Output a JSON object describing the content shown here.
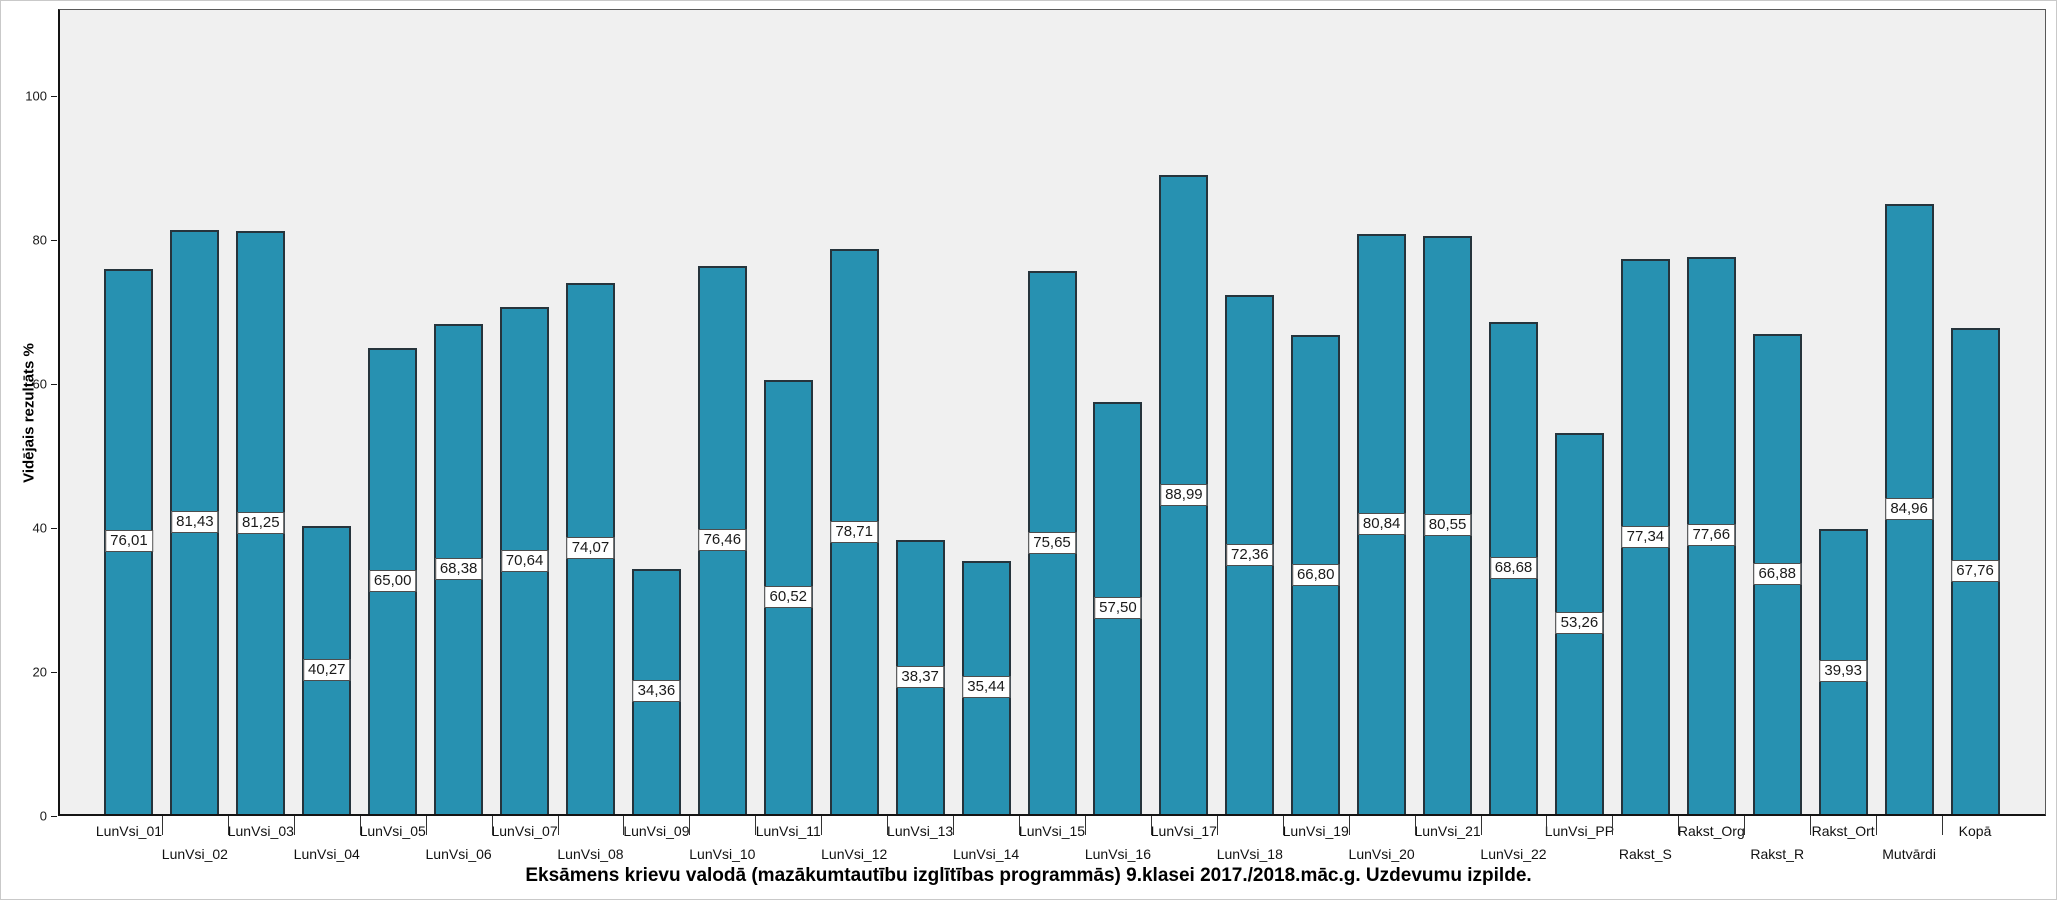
{
  "chart_data": {
    "type": "bar",
    "title": "Eksāmens krievu valodā (mazākumtautību izglītības programmās) 9.klasei 2017./2018.māc.g. Uzdevumu izpilde.",
    "ylabel": "Vidējais rezultāts %",
    "xlabel": "",
    "categories": [
      "LunVsi_01",
      "LunVsi_02",
      "LunVsi_03",
      "LunVsi_04",
      "LunVsi_05",
      "LunVsi_06",
      "LunVsi_07",
      "LunVsi_08",
      "LunVsi_09",
      "LunVsi_10",
      "LunVsi_11",
      "LunVsi_12",
      "LunVsi_13",
      "LunVsi_14",
      "LunVsi_15",
      "LunVsi_16",
      "LunVsi_17",
      "LunVsi_18",
      "LunVsi_19",
      "LunVsi_20",
      "LunVsi_21",
      "LunVsi_22",
      "LunVsi_PP",
      "Rakst_S",
      "Rakst_Org",
      "Rakst_R",
      "Rakst_Ort",
      "Mutvārdi",
      "Kopā"
    ],
    "values": [
      76.01,
      81.43,
      81.25,
      40.27,
      65.0,
      68.38,
      70.64,
      74.07,
      34.36,
      76.46,
      60.52,
      78.71,
      38.37,
      35.44,
      75.65,
      57.5,
      88.99,
      72.36,
      66.8,
      80.84,
      80.55,
      68.68,
      53.26,
      77.34,
      77.66,
      66.88,
      39.93,
      84.96,
      67.76
    ],
    "value_labels": [
      "76,01",
      "81,43",
      "81,25",
      "40,27",
      "65,00",
      "68,38",
      "70,64",
      "74,07",
      "34,36",
      "76,46",
      "60,52",
      "78,71",
      "38,37",
      "35,44",
      "75,65",
      "57,50",
      "88,99",
      "72,36",
      "66,80",
      "80,84",
      "80,55",
      "68,68",
      "53,26",
      "77,34",
      "77,66",
      "66,88",
      "39,93",
      "84,96",
      "67,76"
    ],
    "yticks": [
      0,
      20,
      40,
      60,
      80,
      100
    ],
    "ylim": [
      0,
      112
    ],
    "grid": false,
    "legend_position": "none",
    "x_labels_staggered": true,
    "colors": {
      "bar_fill": "#2791b1",
      "bar_border": "#26343c",
      "plot_background": "#f0f0f0",
      "figure_background": "#ffffff",
      "axis_line": "#141414",
      "value_label_background": "#ffffff",
      "value_label_border": "#4d4d4d",
      "text": "#1a1a1a"
    }
  }
}
